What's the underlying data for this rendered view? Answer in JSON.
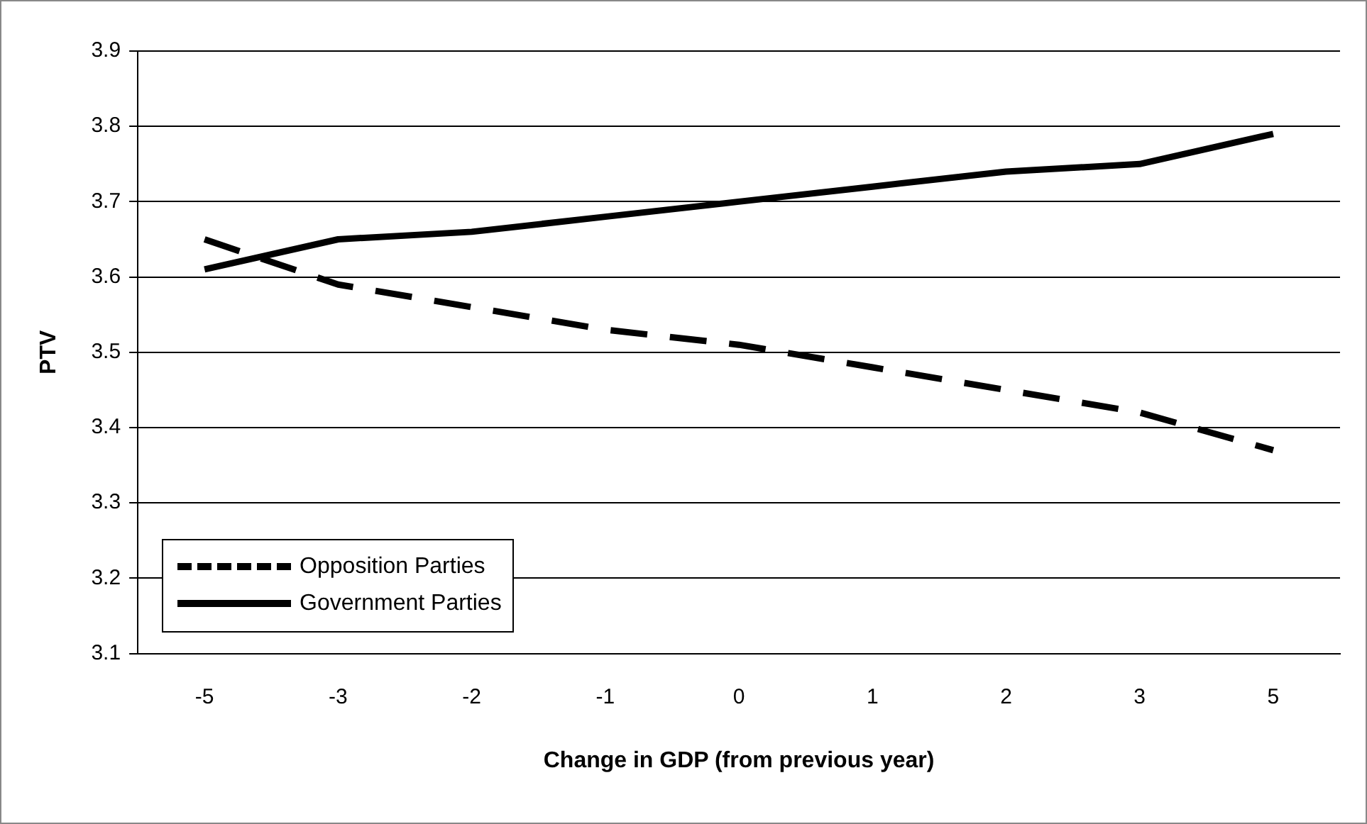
{
  "chart_data": {
    "type": "line",
    "xlabel": "Change in GDP (from previous year)",
    "ylabel": "PTV",
    "categories": [
      "-5",
      "-3",
      "-2",
      "-1",
      "0",
      "1",
      "2",
      "3",
      "5"
    ],
    "series": [
      {
        "name": "Opposition Parties",
        "color": "#000000",
        "line_style": "dashed",
        "values": [
          3.65,
          3.59,
          3.56,
          3.53,
          3.51,
          3.48,
          3.45,
          3.42,
          3.37
        ]
      },
      {
        "name": "Government Parties",
        "color": "#000000",
        "line_style": "solid",
        "values": [
          3.61,
          3.65,
          3.66,
          3.68,
          3.7,
          3.72,
          3.74,
          3.75,
          3.79
        ]
      }
    ],
    "ylim": [
      3.1,
      3.9
    ],
    "yticks": [
      3.1,
      3.2,
      3.3,
      3.4,
      3.5,
      3.6,
      3.7,
      3.8,
      3.9
    ],
    "grid": "y",
    "legend": "bottom left",
    "marker": "none"
  }
}
